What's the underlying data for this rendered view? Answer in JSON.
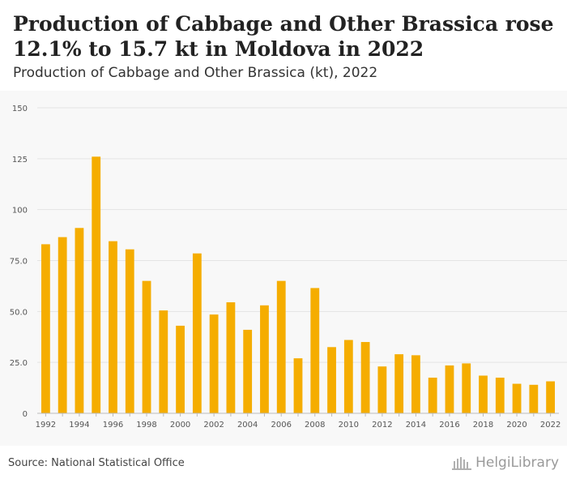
{
  "header": {
    "title": "Production of Cabbage and Other Brassica rose 12.1% to 15.7 kt in Moldova in 2022",
    "subtitle": "Production of Cabbage and Other Brassica (kt), 2022"
  },
  "footer": {
    "source": "Source: National Statistical Office",
    "logo_text": "HelgiLibrary"
  },
  "colors": {
    "bar": "#f5ad00",
    "grid": "#e4e4e4",
    "axis": "#bbbbbb",
    "tick_text": "#555555"
  },
  "chart_data": {
    "type": "bar",
    "title": "Production of Cabbage and Other Brassica rose 12.1% to 15.7 kt in Moldova in 2022",
    "subtitle": "Production of Cabbage and Other Brassica (kt), 2022",
    "xlabel": "",
    "ylabel": "",
    "ylim": [
      0,
      150
    ],
    "yticks": [
      0,
      25.0,
      50.0,
      75.0,
      100,
      125,
      150
    ],
    "ytick_labels": [
      "0",
      "25.0",
      "50.0",
      "75.0",
      "100",
      "125",
      "150"
    ],
    "grid": true,
    "categories": [
      "1992",
      "1993",
      "1994",
      "1995",
      "1996",
      "1997",
      "1998",
      "1999",
      "2000",
      "2001",
      "2002",
      "2003",
      "2004",
      "2005",
      "2006",
      "2007",
      "2008",
      "2009",
      "2010",
      "2011",
      "2012",
      "2013",
      "2014",
      "2015",
      "2016",
      "2017",
      "2018",
      "2019",
      "2020",
      "2021",
      "2022"
    ],
    "xtick_labels": [
      "1992",
      "1994",
      "1996",
      "1998",
      "2000",
      "2002",
      "2004",
      "2006",
      "2008",
      "2010",
      "2012",
      "2014",
      "2016",
      "2018",
      "2020",
      "2022"
    ],
    "values": [
      83,
      86.5,
      91,
      126,
      84.5,
      80.5,
      65,
      50.5,
      43,
      78.5,
      48.5,
      54.5,
      41,
      53,
      65,
      27,
      61.5,
      32.5,
      36,
      35,
      23,
      29,
      28.5,
      17.5,
      23.5,
      24.5,
      18.5,
      17.5,
      14.5,
      14,
      15.7
    ]
  }
}
